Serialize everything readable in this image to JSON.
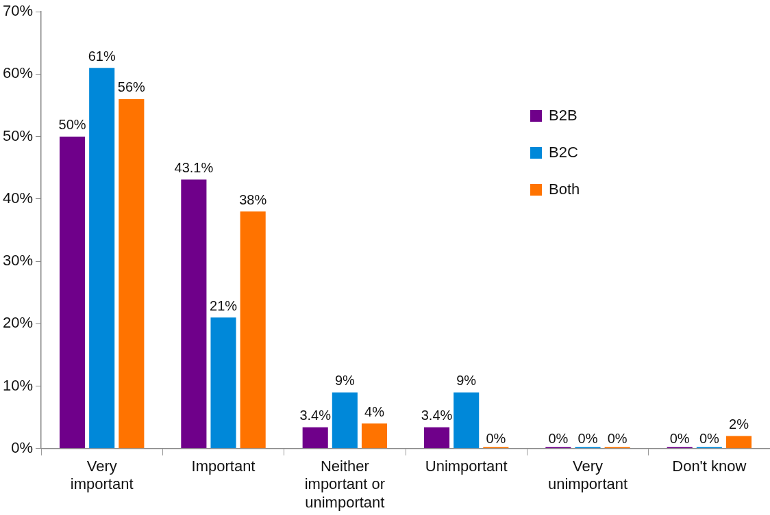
{
  "chart_data": {
    "type": "bar",
    "categories": [
      "Very important",
      "Important",
      "Neither important or unimportant",
      "Unimportant",
      "Very unimportant",
      "Don't know"
    ],
    "series": [
      {
        "name": "B2B",
        "color": "#6f008a",
        "values": [
          50,
          43.1,
          3.4,
          3.4,
          0,
          0
        ],
        "value_labels": [
          "50%",
          "43.1%",
          "3.4%",
          "3.4%",
          "0%",
          "0%"
        ]
      },
      {
        "name": "B2C",
        "color": "#0088d9",
        "values": [
          61,
          21,
          9,
          9,
          0,
          0
        ],
        "value_labels": [
          "61%",
          "21%",
          "9%",
          "9%",
          "0%",
          "0%"
        ]
      },
      {
        "name": "Both",
        "color": "#ff7300",
        "values": [
          56,
          38,
          4,
          0,
          0,
          2
        ],
        "value_labels": [
          "56%",
          "38%",
          "4%",
          "0%",
          "0%",
          "2%"
        ]
      }
    ],
    "ylim": [
      0,
      70
    ],
    "yticks": [
      {
        "value": 0,
        "label": "0%"
      },
      {
        "value": 10,
        "label": "10%"
      },
      {
        "value": 20,
        "label": "20%"
      },
      {
        "value": 30,
        "label": "30%"
      },
      {
        "value": 40,
        "label": "40%"
      },
      {
        "value": 50,
        "label": "50%"
      },
      {
        "value": 60,
        "label": "60%"
      },
      {
        "value": 70,
        "label": "70%"
      }
    ],
    "grid": false,
    "legend": "top right"
  }
}
